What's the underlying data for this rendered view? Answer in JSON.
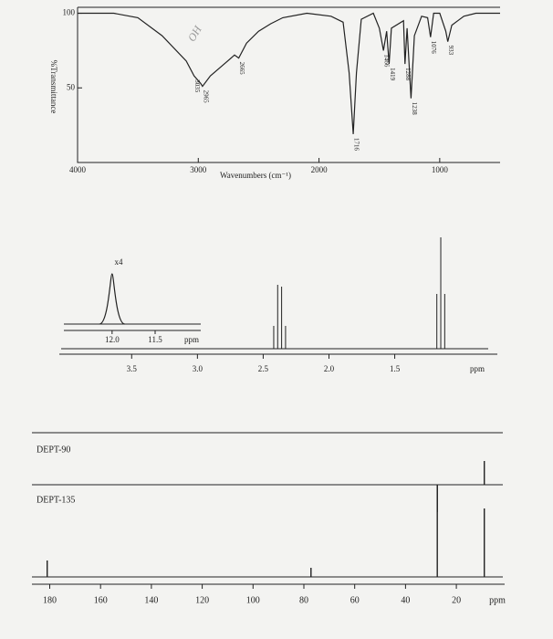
{
  "chart_data": [
    {
      "type": "line",
      "x_label": "Wavenumbers (cm⁻¹)",
      "y_label": "%Transmittance",
      "note": "OH",
      "x": [
        4000,
        3700,
        3500,
        3300,
        3100,
        3035,
        2980,
        2965,
        2900,
        2800,
        2700,
        2665,
        2600,
        2500,
        2400,
        2300,
        2100,
        1900,
        1800,
        1750,
        1716,
        1690,
        1650,
        1550,
        1500,
        1466,
        1440,
        1419,
        1400,
        1300,
        1288,
        1270,
        1238,
        1210,
        1150,
        1100,
        1076,
        1050,
        1000,
        950,
        933,
        900,
        850,
        800,
        700,
        500
      ],
      "values": [
        100,
        100,
        97,
        85,
        68,
        58,
        53,
        51,
        58,
        65,
        72,
        70,
        80,
        88,
        93,
        97,
        100,
        98,
        94,
        60,
        19,
        60,
        96,
        100,
        90,
        75,
        88,
        66,
        90,
        95,
        66,
        90,
        43,
        85,
        98,
        97,
        84,
        100,
        100,
        88,
        81,
        92,
        95,
        98,
        100,
        100
      ],
      "annotations": [
        3035,
        2965,
        2665,
        1716,
        1466,
        1419,
        1288,
        1238,
        1076,
        933
      ],
      "color": "#222222",
      "xlim": [
        4000,
        500
      ],
      "ylim": [
        0,
        104
      ],
      "xticks": [
        4000,
        3000,
        2000,
        1000
      ],
      "yticks": [
        50,
        100
      ]
    },
    {
      "type": "stick",
      "x_label": "ppm",
      "x": [
        2.42,
        2.39,
        2.36,
        2.33,
        1.18,
        1.15,
        1.12
      ],
      "values": [
        25,
        70,
        68,
        25,
        60,
        122,
        60
      ],
      "color": "#222222",
      "xlim": [
        4.05,
        0.72
      ],
      "ylim": [
        0,
        130
      ],
      "xticks": [
        3.5,
        {
          "value": 3.0,
          "label": "3.0"
        },
        2.5,
        {
          "value": 2.0,
          "label": "2.0"
        },
        1.5
      ],
      "inset": {
        "label": "x4",
        "x_label": "ppm",
        "x": [
          12.0
        ],
        "values": [
          55
        ],
        "xlim": [
          12.56,
          10.97
        ],
        "ylim": [
          0,
          60
        ],
        "xticks": [
          {
            "value": 12.0,
            "label": "12.0"
          },
          {
            "value": 11.5,
            "label": "11.5"
          }
        ]
      }
    },
    {
      "type": "stick",
      "x_label": "ppm",
      "color": "#222222",
      "xlim": [
        187,
        1
      ],
      "ylim": [
        0,
        100
      ],
      "xticks": [
        180,
        160,
        140,
        120,
        100,
        80,
        60,
        40,
        20
      ],
      "series": [
        {
          "name": "DEPT-90",
          "x": [],
          "values": []
        },
        {
          "name": "DEPT-135",
          "x": [
            27.5,
            9.0
          ],
          "values": [
            -30,
            26
          ]
        },
        {
          "x": [
            181,
            77.2,
            27.5,
            9.0
          ],
          "values": [
            18,
            10,
            100,
            75
          ]
        }
      ]
    }
  ]
}
